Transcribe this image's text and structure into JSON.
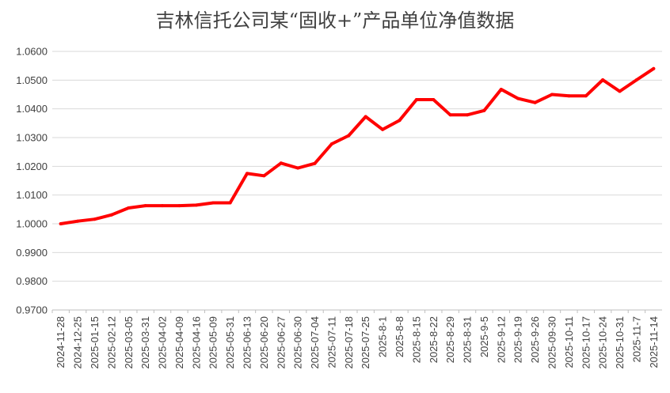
{
  "chart_data": {
    "type": "line",
    "title": "吉林信托公司某“固收+”产品单位净值数据",
    "xlabel": "",
    "ylabel": "",
    "ylim": [
      0.97,
      1.06
    ],
    "y_ticks": [
      "1.0600",
      "1.0500",
      "1.0400",
      "1.0300",
      "1.0200",
      "1.0100",
      "1.0000",
      "0.9900",
      "0.9800",
      "0.9700"
    ],
    "grid": true,
    "legend": "none",
    "color": "#ff0000",
    "x": [
      "2024-11-28",
      "2024-12-25",
      "2025-01-15",
      "2025-02-12",
      "2025-03-05",
      "2025-03-31",
      "2025-04-02",
      "2025-04-09",
      "2025-04-16",
      "2025-05-09",
      "2025-05-31",
      "2025-06-13",
      "2025-06-20",
      "2025-06-27",
      "2025-06-30",
      "2025-07-04",
      "2025-07-11",
      "2025-07-18",
      "2025-07-25",
      "2025-8-1",
      "2025-8-8",
      "2025-8-15",
      "2025-8-22",
      "2025-8-29",
      "2025-8-31",
      "2025-9-5",
      "2025-9-12",
      "2025-9-19",
      "2025-9-26",
      "2025-09-30",
      "2025-10-11",
      "2025-10-17",
      "2025-10-24",
      "2025-10-31",
      "2025-11-7",
      "2025-11-14"
    ],
    "series": [
      {
        "name": "",
        "values": [
          1.0,
          1.0009,
          1.0016,
          1.0031,
          1.0055,
          1.0063,
          1.0063,
          1.0063,
          1.0065,
          1.0073,
          1.0073,
          1.0175,
          1.0167,
          1.0211,
          1.0194,
          1.021,
          1.0278,
          1.0307,
          1.0373,
          1.0328,
          1.036,
          1.0432,
          1.0432,
          1.0379,
          1.0379,
          1.0394,
          1.0468,
          1.0436,
          1.0422,
          1.045,
          1.0445,
          1.0445,
          1.0501,
          1.0461,
          1.0501,
          1.054
        ]
      }
    ]
  }
}
